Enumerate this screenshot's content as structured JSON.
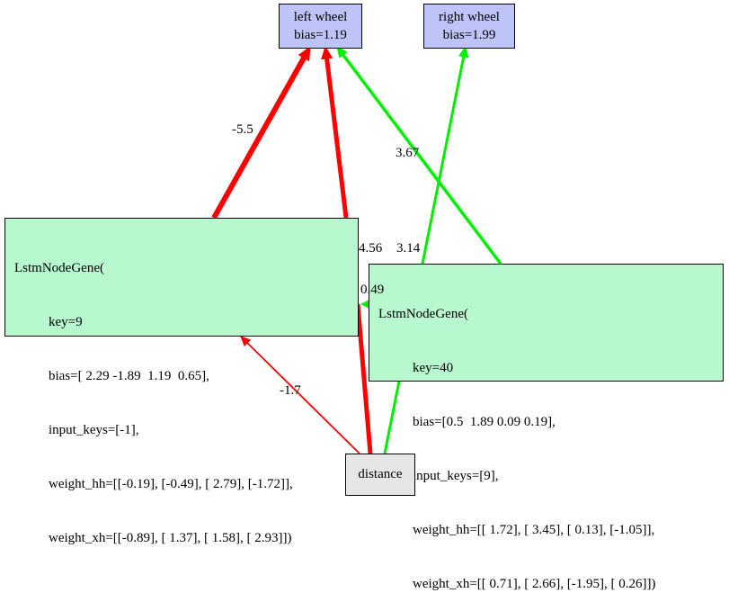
{
  "nodes": {
    "left_wheel": {
      "line1": "left wheel",
      "line2": "bias=1.19"
    },
    "right_wheel": {
      "line1": "right wheel",
      "line2": "bias=1.99"
    },
    "distance": {
      "label": "distance"
    },
    "lstm9": {
      "title": "LstmNodeGene(",
      "key": "key=9",
      "bias": "bias=[ 2.29 -1.89  1.19  0.65],",
      "input_keys": "input_keys=[-1],",
      "weight_hh": "weight_hh=[[-0.19], [-0.49], [ 2.79], [-1.72]],",
      "weight_xh": "weight_xh=[[-0.89], [ 1.37], [ 1.58], [ 2.93]])"
    },
    "lstm40": {
      "title": "LstmNodeGene(",
      "key": "key=40",
      "bias": "bias=[0.5  1.89 0.09 0.19],",
      "input_keys": "input_keys=[9],",
      "weight_hh": "weight_hh=[[ 1.72], [ 3.45], [ 0.13], [-1.05]],",
      "weight_xh": "weight_xh=[[ 0.71], [ 2.66], [-1.95], [ 0.26]])"
    }
  },
  "edge_labels": {
    "lstm9_to_left_a": "-5.5",
    "lstm40_to_left": "3.67",
    "lstm9_to_left_b": "4.56",
    "distance_to_right": "3.14",
    "distance_to_lstm40": "0.49",
    "distance_to_lstm9": "-1.7"
  },
  "colors": {
    "negative": "#ff0000",
    "positive": "#00ee00",
    "lstm_fill": "#b8f8cf",
    "output_fill": "#bfc4f8",
    "input_fill": "#e6e6e6"
  }
}
